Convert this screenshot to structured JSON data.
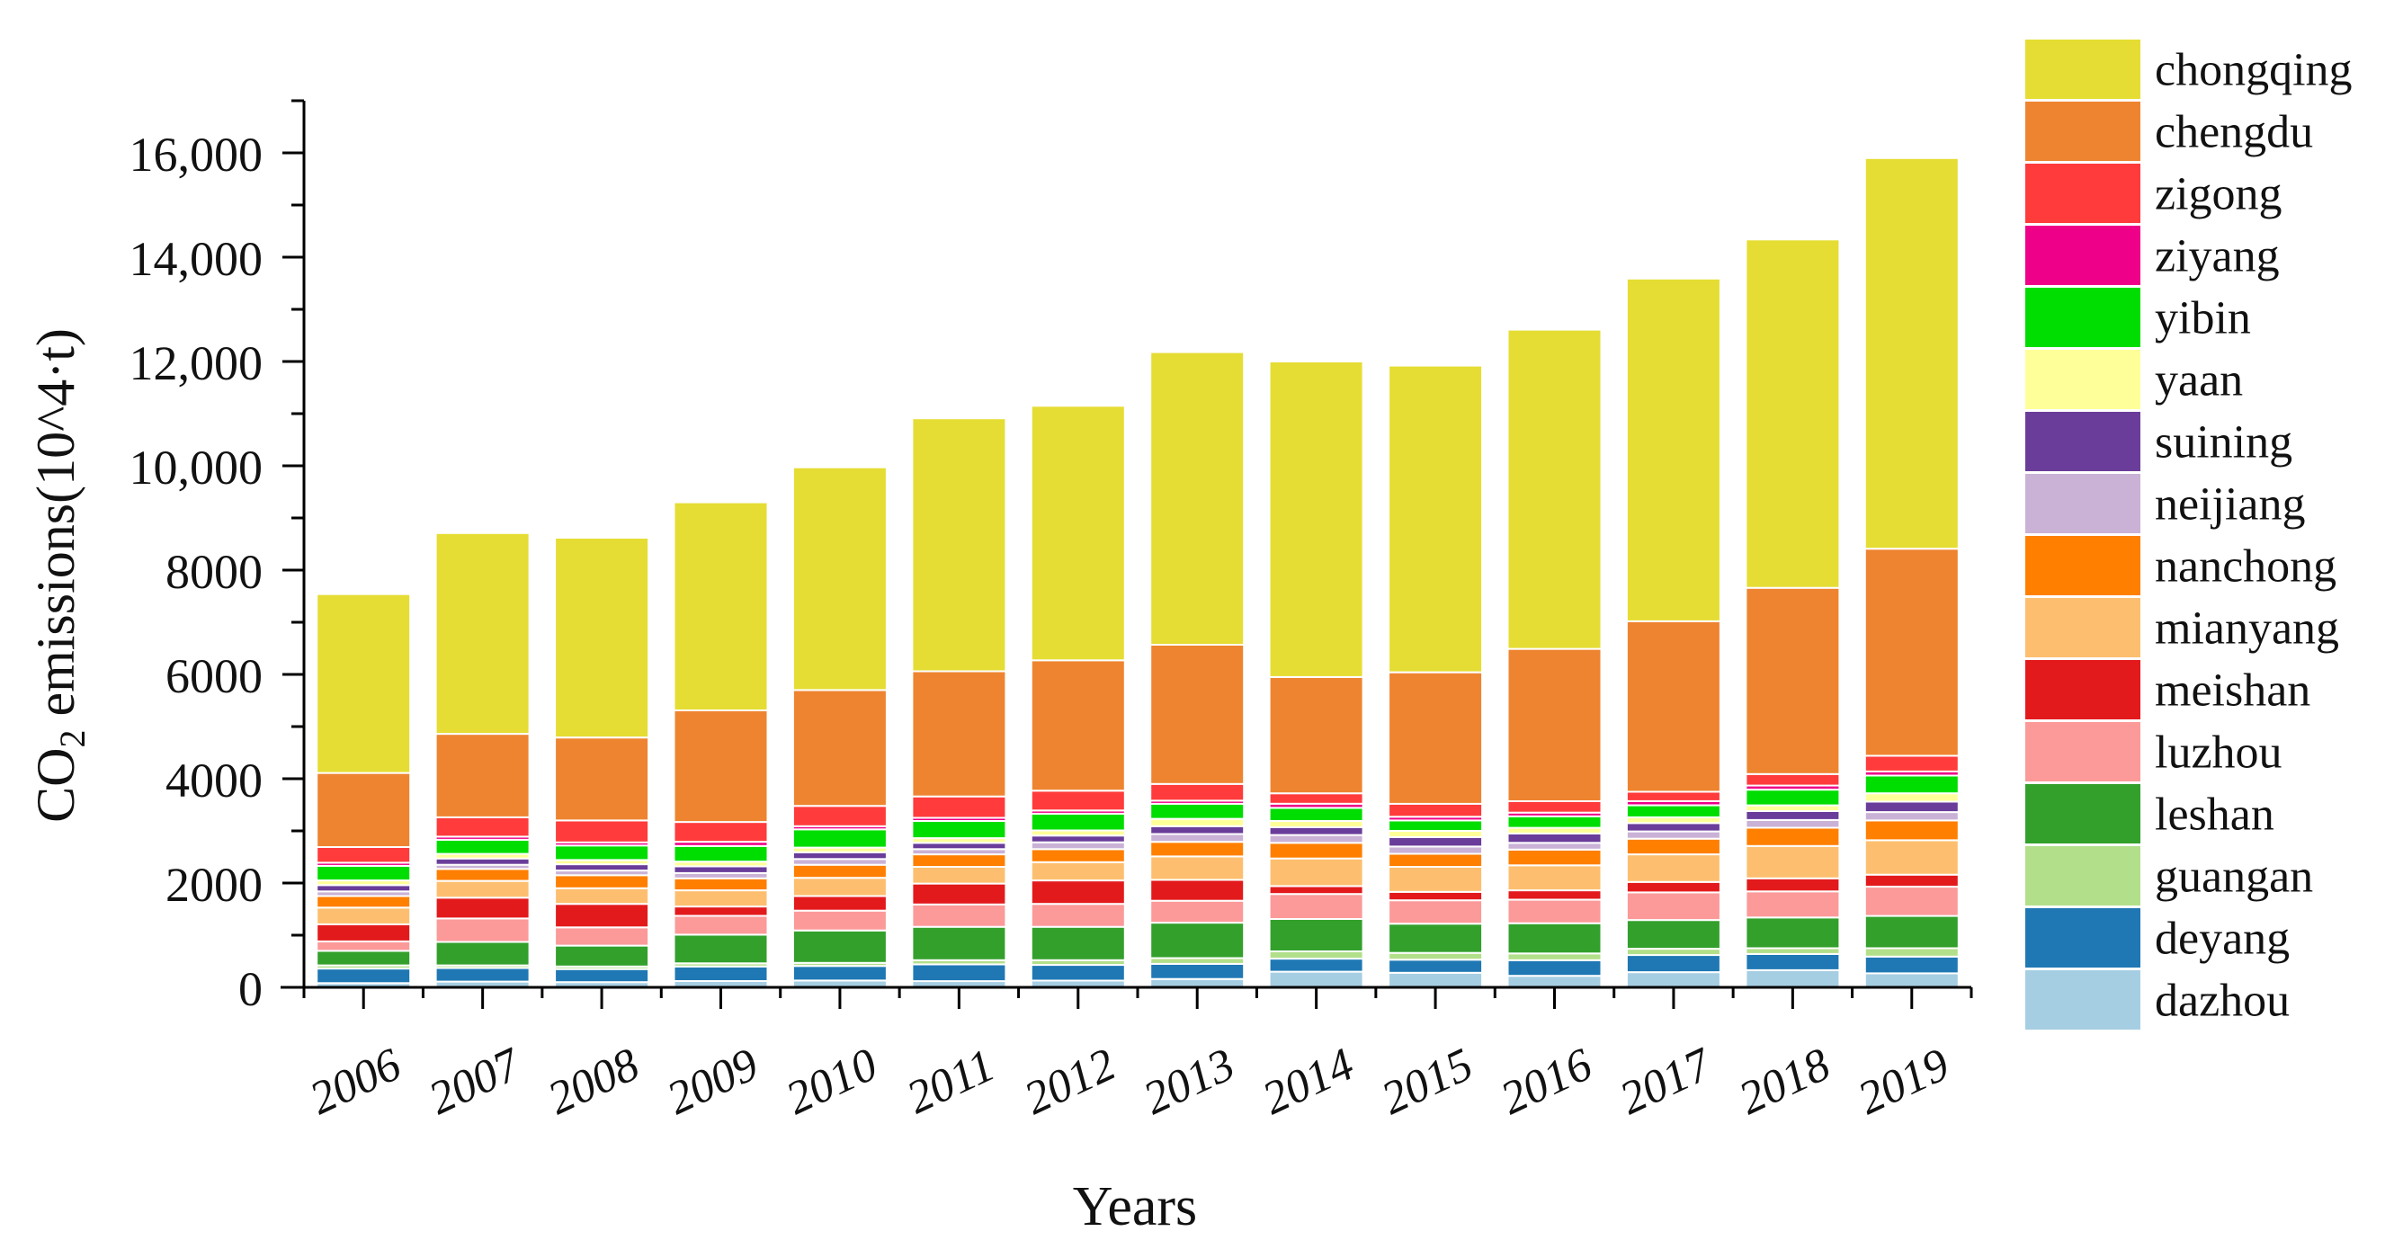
{
  "chart_data": {
    "type": "bar",
    "stacked": true,
    "title": "",
    "xlabel": "Years",
    "ylabel": {
      "prefix": "CO",
      "subscript": "2",
      "suffix": " emissions(10^4·t)"
    },
    "ylim": [
      0,
      17000
    ],
    "yticks": [
      0,
      2000,
      4000,
      6000,
      8000,
      10000,
      12000,
      14000,
      16000
    ],
    "ytick_labels": [
      "0",
      "2000",
      "4000",
      "6000",
      "8000",
      "10,000",
      "12,000",
      "14,000",
      "16,000"
    ],
    "grid": false,
    "legend_position": "right",
    "categories": [
      "2006",
      "2007",
      "2008",
      "2009",
      "2010",
      "2011",
      "2012",
      "2013",
      "2014",
      "2015",
      "2016",
      "2017",
      "2018",
      "2019"
    ],
    "series": [
      {
        "name": "dazhou",
        "color": "#a6cee3",
        "values": [
          80,
          110,
          100,
          120,
          130,
          120,
          130,
          160,
          300,
          280,
          220,
          290,
          330,
          270
        ]
      },
      {
        "name": "deyang",
        "color": "#1f78b4",
        "values": [
          280,
          260,
          250,
          280,
          280,
          320,
          300,
          290,
          250,
          250,
          300,
          330,
          310,
          320
        ]
      },
      {
        "name": "guangan",
        "color": "#b2df8a",
        "values": [
          60,
          50,
          50,
          60,
          60,
          80,
          90,
          110,
          140,
          130,
          130,
          120,
          110,
          160
        ]
      },
      {
        "name": "leshan",
        "color": "#33a02c",
        "values": [
          280,
          450,
          400,
          550,
          620,
          640,
          640,
          680,
          620,
          560,
          580,
          550,
          590,
          620
        ]
      },
      {
        "name": "luzhou",
        "color": "#fb9a99",
        "values": [
          180,
          450,
          350,
          360,
          380,
          430,
          440,
          420,
          480,
          450,
          450,
          530,
          500,
          560
        ]
      },
      {
        "name": "meishan",
        "color": "#e31a1c",
        "values": [
          330,
          400,
          450,
          180,
          280,
          400,
          450,
          400,
          150,
          160,
          180,
          200,
          250,
          230
        ]
      },
      {
        "name": "mianyang",
        "color": "#fdbf6f",
        "values": [
          320,
          320,
          300,
          310,
          350,
          320,
          350,
          450,
          530,
          480,
          480,
          530,
          620,
          660
        ]
      },
      {
        "name": "nanchong",
        "color": "#ff7f00",
        "values": [
          220,
          230,
          250,
          230,
          250,
          240,
          250,
          280,
          300,
          250,
          300,
          300,
          350,
          380
        ]
      },
      {
        "name": "neijiang",
        "color": "#cab2d6",
        "values": [
          90,
          80,
          90,
          100,
          110,
          100,
          130,
          150,
          150,
          140,
          130,
          140,
          150,
          160
        ]
      },
      {
        "name": "suining",
        "color": "#6a3d9a",
        "values": [
          120,
          120,
          120,
          130,
          130,
          120,
          130,
          150,
          150,
          180,
          180,
          160,
          170,
          200
        ]
      },
      {
        "name": "yaan",
        "color": "#ffff99",
        "values": [
          90,
          90,
          80,
          90,
          90,
          90,
          100,
          140,
          120,
          120,
          110,
          110,
          110,
          160
        ]
      },
      {
        "name": "yibin",
        "color": "#00dd00",
        "values": [
          280,
          270,
          280,
          300,
          350,
          330,
          320,
          290,
          250,
          200,
          220,
          230,
          300,
          340
        ]
      },
      {
        "name": "ziyang",
        "color": "#ee0088",
        "values": [
          60,
          60,
          60,
          80,
          60,
          60,
          60,
          60,
          80,
          70,
          70,
          80,
          80,
          80
        ]
      },
      {
        "name": "zigong",
        "color": "#ff3b3b",
        "values": [
          300,
          370,
          420,
          380,
          390,
          410,
          380,
          320,
          200,
          250,
          220,
          180,
          220,
          300
        ]
      },
      {
        "name": "chengdu",
        "color": "#ee8430",
        "values": [
          1420,
          1600,
          1590,
          2140,
          2220,
          2400,
          2500,
          2670,
          2230,
          2520,
          2920,
          3270,
          3570,
          3970
        ]
      },
      {
        "name": "chongqing",
        "color": "#e5dd33",
        "values": [
          3430,
          3850,
          3830,
          3990,
          4270,
          4850,
          4880,
          5610,
          6050,
          5880,
          6120,
          6570,
          6680,
          7490
        ]
      }
    ]
  }
}
